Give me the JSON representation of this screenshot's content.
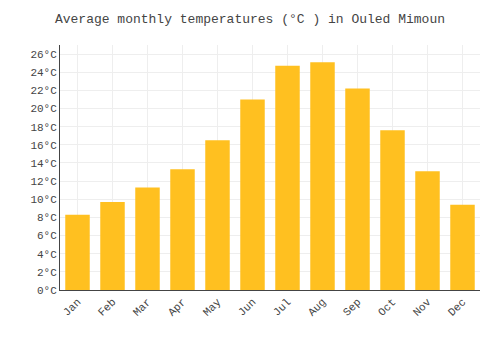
{
  "chart_data": {
    "type": "bar",
    "title": "Average monthly temperatures (°C ) in Ouled Mimoun",
    "categories": [
      "Jan",
      "Feb",
      "Mar",
      "Apr",
      "May",
      "Jun",
      "Jul",
      "Aug",
      "Sep",
      "Oct",
      "Nov",
      "Dec"
    ],
    "values": [
      8.3,
      9.7,
      11.3,
      13.3,
      16.5,
      21.0,
      24.7,
      25.1,
      22.2,
      17.6,
      13.1,
      9.4
    ],
    "color": "#FFC020",
    "ylim": [
      0,
      27
    ],
    "yticks": [
      {
        "value": 0,
        "label": "0°C"
      },
      {
        "value": 2,
        "label": "2°C"
      },
      {
        "value": 4,
        "label": "4°C"
      },
      {
        "value": 6,
        "label": "6°C"
      },
      {
        "value": 8,
        "label": "8°C"
      },
      {
        "value": 10,
        "label": "10°C"
      },
      {
        "value": 12,
        "label": "12°C"
      },
      {
        "value": 14,
        "label": "14°C"
      },
      {
        "value": 16,
        "label": "16°C"
      },
      {
        "value": 18,
        "label": "18°C"
      },
      {
        "value": 20,
        "label": "20°C"
      },
      {
        "value": 22,
        "label": "22°C"
      },
      {
        "value": 24,
        "label": "24°C"
      },
      {
        "value": 26,
        "label": "26°C"
      }
    ],
    "grid": true
  }
}
